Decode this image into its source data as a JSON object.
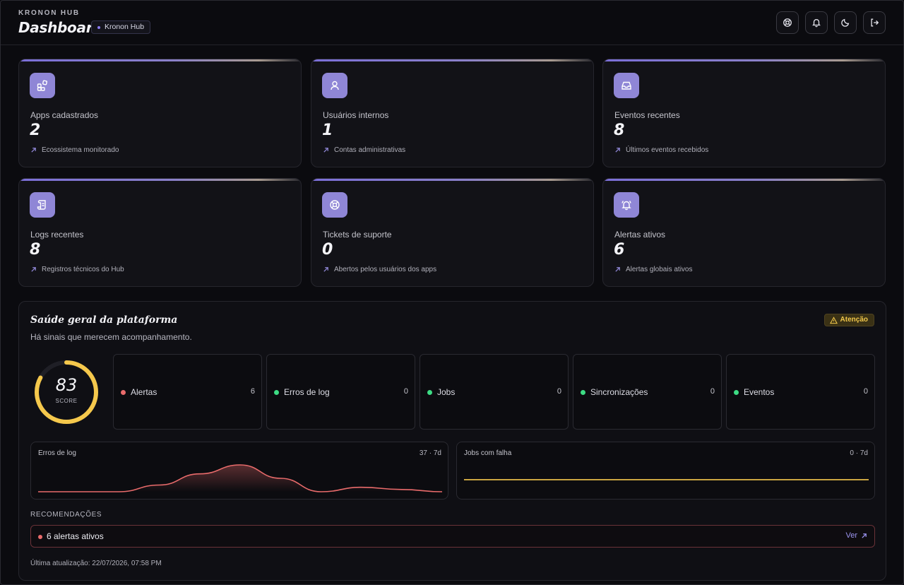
{
  "header": {
    "kicker": "KRONON HUB",
    "title": "Dashboard",
    "badge": "Kronon Hub",
    "actions": [
      {
        "icon": "lifebuoy-icon"
      },
      {
        "icon": "bell-icon"
      },
      {
        "icon": "moon-icon"
      },
      {
        "icon": "logout-icon"
      }
    ]
  },
  "stats": [
    {
      "icon": "apps-icon",
      "label": "Apps cadastrados",
      "value": "2",
      "sub": "Ecossistema monitorado"
    },
    {
      "icon": "user-icon",
      "label": "Usuários internos",
      "value": "1",
      "sub": "Contas administrativas"
    },
    {
      "icon": "inbox-icon",
      "label": "Eventos recentes",
      "value": "8",
      "sub": "Últimos eventos recebidos"
    },
    {
      "icon": "scroll-icon",
      "label": "Logs recentes",
      "value": "8",
      "sub": "Registros técnicos do Hub"
    },
    {
      "icon": "lifebuoy-icon",
      "label": "Tickets de suporte",
      "value": "0",
      "sub": "Abertos pelos usuários dos apps"
    },
    {
      "icon": "bell-ring-icon",
      "label": "Alertas ativos",
      "value": "6",
      "sub": "Alertas globais ativos"
    }
  ],
  "health": {
    "title": "Saúde geral da plataforma",
    "subtitle": "Há sinais que merecem acompanhamento.",
    "status_badge": "Atenção",
    "score": 83,
    "score_label": "SCORE",
    "metrics": [
      {
        "name": "Alertas",
        "value": "6",
        "color": "#e96b6b"
      },
      {
        "name": "Erros de log",
        "value": "0",
        "color": "#3ddc84"
      },
      {
        "name": "Jobs",
        "value": "0",
        "color": "#3ddc84"
      },
      {
        "name": "Sincronizações",
        "value": "0",
        "color": "#3ddc84"
      },
      {
        "name": "Eventos",
        "value": "0",
        "color": "#3ddc84"
      }
    ],
    "sparks": [
      {
        "name": "Erros de log",
        "value": "37 · 7d",
        "color": "#e96b6b",
        "points": [
          0,
          0,
          0,
          3,
          8,
          12,
          6,
          0,
          2,
          1,
          0
        ]
      },
      {
        "name": "Jobs com falha",
        "value": "0 · 7d",
        "color": "#f5c84c",
        "points": [
          0,
          0,
          0,
          0,
          0,
          0,
          0
        ]
      }
    ],
    "recommendations_title": "RECOMENDAÇÕES",
    "recommendations": [
      {
        "text": "6 alertas ativos",
        "link": "Ver"
      }
    ],
    "updated": "Última atualização: 22/07/2026, 07:58 PM"
  },
  "colors": {
    "accent": "#8f86d6",
    "danger": "#e96b6b",
    "ok": "#3ddc84",
    "warn": "#f5c84c"
  }
}
